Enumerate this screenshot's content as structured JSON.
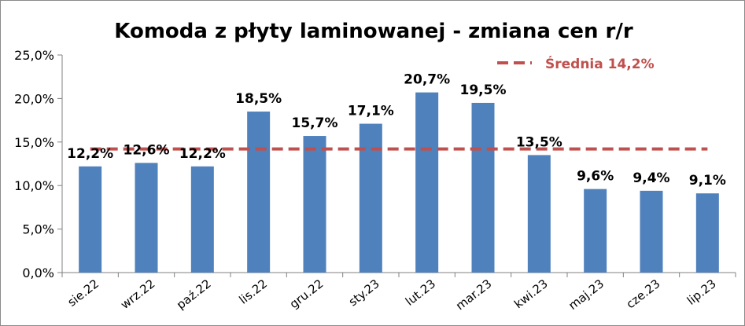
{
  "chart_data": {
    "type": "bar",
    "title": "Komoda z płyty laminowanej - zmiana cen r/r",
    "xlabel": "",
    "ylabel": "",
    "categories": [
      "sie.22",
      "wrz.22",
      "paź.22",
      "lis.22",
      "gru.22",
      "sty.23",
      "lut.23",
      "mar.23",
      "kwi.23",
      "maj.23",
      "cze.23",
      "lip.23"
    ],
    "values": [
      12.2,
      12.6,
      12.2,
      18.5,
      15.7,
      17.1,
      20.7,
      19.5,
      13.5,
      9.6,
      9.4,
      9.1
    ],
    "data_labels": [
      "12,2%",
      "12,6%",
      "12,2%",
      "18,5%",
      "15,7%",
      "17,1%",
      "20,7%",
      "19,5%",
      "13,5%",
      "9,6%",
      "9,4%",
      "9,1%"
    ],
    "ylim": [
      0,
      25
    ],
    "yticks": [
      0,
      5,
      10,
      15,
      20,
      25
    ],
    "ytick_labels": [
      "0,0%",
      "5,0%",
      "10,0%",
      "15,0%",
      "20,0%",
      "25,0%"
    ],
    "average": {
      "name": "Średnia 14,2%",
      "value": 14.2,
      "style": "dashed",
      "color": "#C0504D"
    },
    "bar_color": "#4F81BD",
    "grid": false,
    "legend_position": "top-right"
  }
}
